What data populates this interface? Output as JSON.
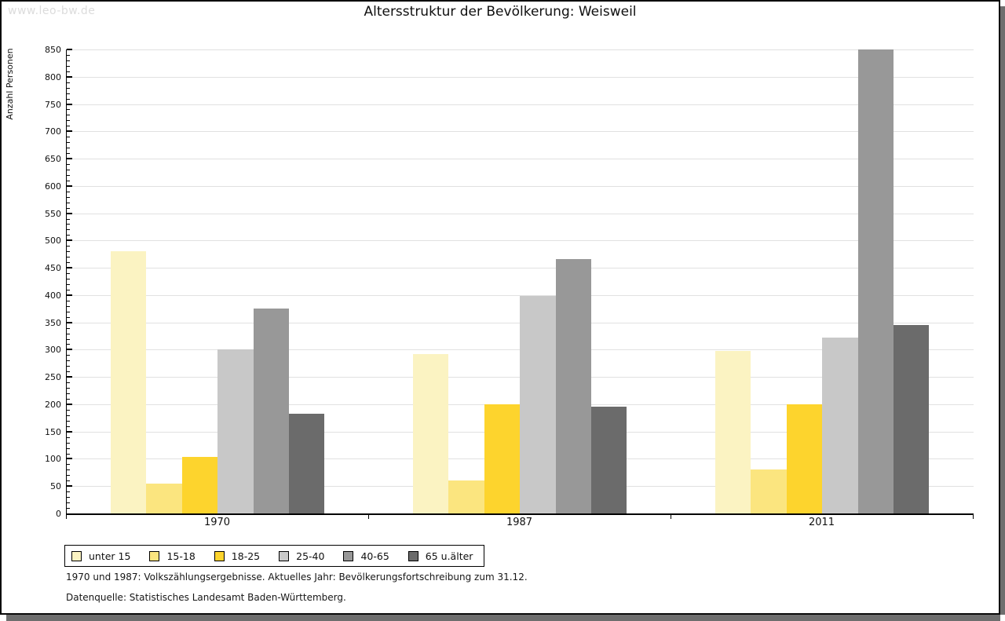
{
  "watermark": "www.leo-bw.de",
  "title": "Altersstruktur der Bevölkerung: Weisweil",
  "chart_data": {
    "type": "bar",
    "title": "Altersstruktur der Bevölkerung: Weisweil",
    "ylabel": "Anzahl Personen",
    "xlabel": "",
    "ylim": [
      0,
      850
    ],
    "ytick_major_step": 50,
    "ytick_minor_step": 10,
    "grid": true,
    "legend_position": "bottom-left",
    "categories": [
      "1970",
      "1987",
      "2011"
    ],
    "series": [
      {
        "name": "unter 15",
        "color": "#fbf3c2",
        "values": [
          480,
          292,
          298
        ]
      },
      {
        "name": "15-18",
        "color": "#fbe57f",
        "values": [
          55,
          60,
          80
        ]
      },
      {
        "name": "18-25",
        "color": "#fdd42d",
        "values": [
          103,
          200,
          200
        ]
      },
      {
        "name": "25-40",
        "color": "#c8c8c8",
        "values": [
          300,
          398,
          322
        ]
      },
      {
        "name": "40-65",
        "color": "#989898",
        "values": [
          375,
          466,
          850
        ]
      },
      {
        "name": "65 u.älter",
        "color": "#6b6b6b",
        "values": [
          182,
          195,
          345
        ]
      }
    ],
    "annotations": [
      "1970 und 1987: Volkszählungsergebnisse. Aktuelles Jahr: Bevölkerungsfortschreibung zum 31.12.",
      "Datenquelle: Statistisches Landesamt Baden-Württemberg."
    ]
  },
  "footnotes": {
    "line1": "1970 und 1987: Volkszählungsergebnisse. Aktuelles Jahr: Bevölkerungsfortschreibung zum 31.12.",
    "line2": "Datenquelle: Statistisches Landesamt Baden-Württemberg."
  }
}
